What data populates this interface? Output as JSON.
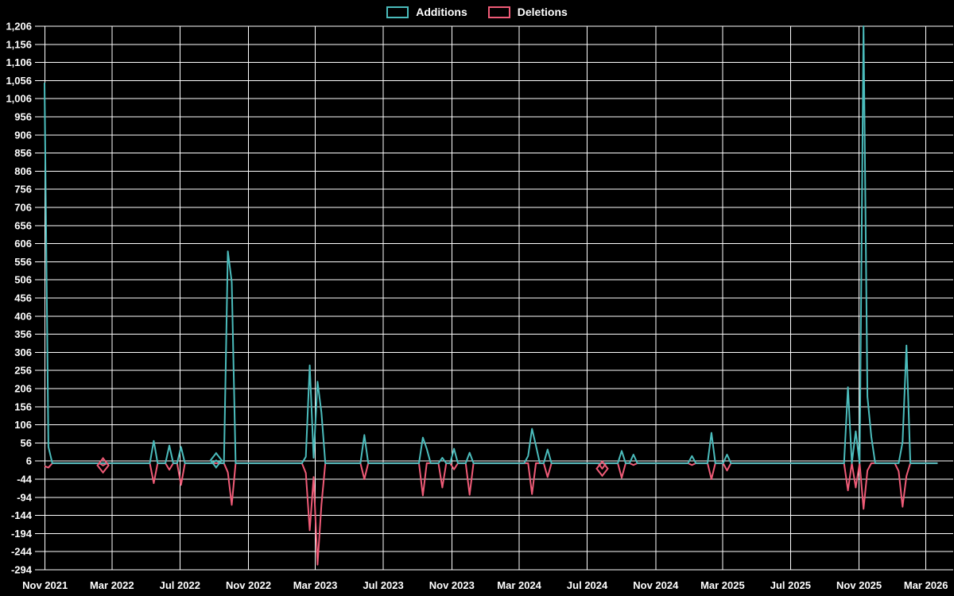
{
  "chart_data": {
    "type": "line",
    "title": "",
    "background": "#000000",
    "grid_color": "#ffffff",
    "text_color": "#ffffff",
    "legend_position": "top-center",
    "grid": true,
    "legend": [
      {
        "label": "Additions",
        "color": "#4bbcbc"
      },
      {
        "label": "Deletions",
        "color": "#ef5b77"
      }
    ],
    "y_axis": {
      "min": -294,
      "max": 1206,
      "step": 50,
      "tick_labels": [
        "1,206",
        "1,156",
        "1,106",
        "1,056",
        "1,006",
        "956",
        "906",
        "856",
        "806",
        "756",
        "706",
        "656",
        "606",
        "556",
        "506",
        "456",
        "406",
        "356",
        "306",
        "256",
        "206",
        "156",
        "106",
        "56",
        "6",
        "-44",
        "-94",
        "-144",
        "-194",
        "-244",
        "-294"
      ]
    },
    "x_axis": {
      "ticks": [
        {
          "label": "Nov 2021",
          "date": "2021-11-01"
        },
        {
          "label": "Mar 2022",
          "date": "2022-03-01"
        },
        {
          "label": "Jul 2022",
          "date": "2022-07-01"
        },
        {
          "label": "Nov 2022",
          "date": "2022-11-01"
        },
        {
          "label": "Mar 2023",
          "date": "2023-03-01"
        },
        {
          "label": "Jul 2023",
          "date": "2023-07-01"
        },
        {
          "label": "Nov 2023",
          "date": "2023-11-01"
        },
        {
          "label": "Mar 2024",
          "date": "2024-03-01"
        },
        {
          "label": "Jul 2024",
          "date": "2024-07-01"
        },
        {
          "label": "Nov 2024",
          "date": "2024-11-01"
        },
        {
          "label": "Mar 2025",
          "date": "2025-03-01"
        },
        {
          "label": "Jul 2025",
          "date": "2025-07-01"
        },
        {
          "label": "Nov 2025",
          "date": "2025-11-01"
        },
        {
          "label": "Mar 2026",
          "date": "2026-03-01"
        }
      ]
    },
    "range": {
      "start": "2021-10-31",
      "end": "2026-03-22",
      "interval_days": 7
    },
    "series": [
      {
        "name": "Additions",
        "color": "#4bbcbc",
        "points": [
          [
            "2021-10-31",
            1050
          ],
          [
            "2021-11-07",
            45
          ],
          [
            "2022-05-15",
            62
          ],
          [
            "2022-06-12",
            49
          ],
          [
            "2022-07-03",
            45
          ],
          [
            "2022-09-04",
            8
          ],
          [
            "2022-09-25",
            585
          ],
          [
            "2022-10-02",
            500
          ],
          [
            "2023-02-12",
            18
          ],
          [
            "2023-02-19",
            270
          ],
          [
            "2023-02-26",
            15
          ],
          [
            "2023-03-05",
            225
          ],
          [
            "2023-03-12",
            140
          ],
          [
            "2023-05-28",
            78
          ],
          [
            "2023-09-10",
            71
          ],
          [
            "2023-09-17",
            40
          ],
          [
            "2023-10-15",
            15
          ],
          [
            "2023-11-05",
            40
          ],
          [
            "2023-12-03",
            29
          ],
          [
            "2024-03-17",
            20
          ],
          [
            "2024-03-24",
            95
          ],
          [
            "2024-03-31",
            49
          ],
          [
            "2024-04-21",
            38
          ],
          [
            "2024-09-01",
            34
          ],
          [
            "2024-09-22",
            24
          ],
          [
            "2025-01-05",
            20
          ],
          [
            "2025-02-09",
            84
          ],
          [
            "2025-03-09",
            24
          ],
          [
            "2025-10-12",
            210
          ],
          [
            "2025-10-26",
            88
          ],
          [
            "2025-11-09",
            1206
          ],
          [
            "2025-11-16",
            184
          ],
          [
            "2025-11-23",
            73
          ],
          [
            "2026-01-18",
            58
          ],
          [
            "2026-01-25",
            325
          ]
        ]
      },
      {
        "name": "Deletions",
        "color": "#ef5b77",
        "points": [
          [
            "2021-10-31",
            -8
          ],
          [
            "2021-11-07",
            -12
          ],
          [
            "2022-02-13",
            -6
          ],
          [
            "2022-05-15",
            -55
          ],
          [
            "2022-06-12",
            -18
          ],
          [
            "2022-07-03",
            -60
          ],
          [
            "2022-09-25",
            -25
          ],
          [
            "2022-10-02",
            -115
          ],
          [
            "2023-02-12",
            -27
          ],
          [
            "2023-02-19",
            -185
          ],
          [
            "2023-02-26",
            -38
          ],
          [
            "2023-03-05",
            -280
          ],
          [
            "2023-03-12",
            -115
          ],
          [
            "2023-05-28",
            -44
          ],
          [
            "2023-09-10",
            -89
          ],
          [
            "2023-10-15",
            -67
          ],
          [
            "2023-11-05",
            -17
          ],
          [
            "2023-12-03",
            -87
          ],
          [
            "2024-03-24",
            -85
          ],
          [
            "2024-04-21",
            -38
          ],
          [
            "2024-07-28",
            -15
          ],
          [
            "2024-09-01",
            -40
          ],
          [
            "2024-09-22",
            -5
          ],
          [
            "2025-01-05",
            -5
          ],
          [
            "2025-02-09",
            -44
          ],
          [
            "2025-03-09",
            -20
          ],
          [
            "2025-10-12",
            -75
          ],
          [
            "2025-10-26",
            -67
          ],
          [
            "2025-11-09",
            -126
          ],
          [
            "2025-11-16",
            -20
          ],
          [
            "2026-01-11",
            -22
          ],
          [
            "2026-01-18",
            -120
          ],
          [
            "2026-01-25",
            -35
          ]
        ]
      }
    ],
    "markers": [
      {
        "series": 1,
        "date": "2022-02-13",
        "value": -6
      },
      {
        "series": 0,
        "date": "2022-09-04",
        "value": 8
      },
      {
        "series": 1,
        "date": "2024-07-28",
        "value": -15
      }
    ]
  }
}
